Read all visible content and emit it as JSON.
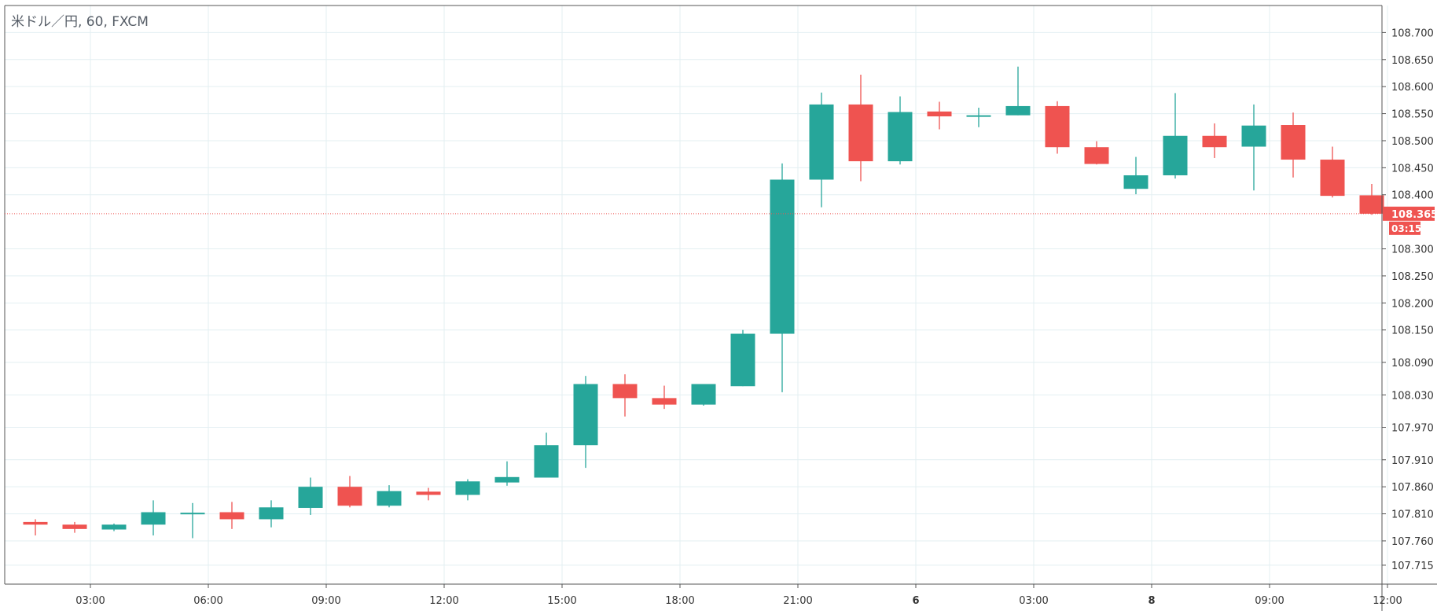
{
  "legend_label": "米ドル／円, 60, FXCM",
  "colors": {
    "up": "#26a69a",
    "down": "#ef5350",
    "grid": "#e3eff2",
    "axis_text": "#333333",
    "price_line": "#ef5350",
    "last_badge_bg": "#ef5350",
    "last_badge_text": "#ffffff"
  },
  "last_price": {
    "value": 108.365,
    "label": "108.365",
    "countdown": "03:15"
  },
  "chart_data": {
    "type": "candlestick",
    "title": "",
    "ylim": [
      107.68,
      108.75
    ],
    "y_ticks": [
      "108.700",
      "108.650",
      "108.600",
      "108.550",
      "108.500",
      "108.450",
      "108.400",
      "108.300",
      "108.250",
      "108.200",
      "108.150",
      "108.090",
      "108.030",
      "107.970",
      "107.910",
      "107.860",
      "107.810",
      "107.760",
      "107.715"
    ],
    "x_ticks": [
      "03:00",
      "06:00",
      "09:00",
      "12:00",
      "15:00",
      "18:00",
      "21:00",
      "6",
      "03:00",
      "8",
      "09:00",
      "12:00"
    ],
    "x_tick_bars": [
      1.4,
      4.4,
      7.4,
      10.4,
      13.4,
      16.4,
      19.4,
      22.4,
      25.4,
      28.4,
      31.4,
      34.4
    ],
    "grid": true,
    "candles": [
      {
        "o": 107.795,
        "h": 107.8,
        "l": 107.77,
        "c": 107.79
      },
      {
        "o": 107.79,
        "h": 107.795,
        "l": 107.775,
        "c": 107.782
      },
      {
        "o": 107.781,
        "h": 107.792,
        "l": 107.778,
        "c": 107.79
      },
      {
        "o": 107.79,
        "h": 107.835,
        "l": 107.77,
        "c": 107.813
      },
      {
        "o": 107.812,
        "h": 107.83,
        "l": 107.765,
        "c": 107.812
      },
      {
        "o": 107.813,
        "h": 107.832,
        "l": 107.782,
        "c": 107.8
      },
      {
        "o": 107.8,
        "h": 107.835,
        "l": 107.785,
        "c": 107.822
      },
      {
        "o": 107.821,
        "h": 107.877,
        "l": 107.808,
        "c": 107.86
      },
      {
        "o": 107.86,
        "h": 107.88,
        "l": 107.822,
        "c": 107.825
      },
      {
        "o": 107.825,
        "h": 107.863,
        "l": 107.822,
        "c": 107.852
      },
      {
        "o": 107.851,
        "h": 107.858,
        "l": 107.835,
        "c": 107.845
      },
      {
        "o": 107.845,
        "h": 107.874,
        "l": 107.835,
        "c": 107.87
      },
      {
        "o": 107.868,
        "h": 107.907,
        "l": 107.862,
        "c": 107.878
      },
      {
        "o": 107.877,
        "h": 107.96,
        "l": 107.877,
        "c": 107.937
      },
      {
        "o": 107.937,
        "h": 108.065,
        "l": 107.895,
        "c": 108.05
      },
      {
        "o": 108.05,
        "h": 108.068,
        "l": 107.99,
        "c": 108.024
      },
      {
        "o": 108.024,
        "h": 108.047,
        "l": 108.004,
        "c": 108.012
      },
      {
        "o": 108.012,
        "h": 108.05,
        "l": 108.01,
        "c": 108.05
      },
      {
        "o": 108.046,
        "h": 108.15,
        "l": 108.046,
        "c": 108.143
      },
      {
        "o": 108.143,
        "h": 108.458,
        "l": 108.035,
        "c": 108.428
      },
      {
        "o": 108.428,
        "h": 108.589,
        "l": 108.377,
        "c": 108.567
      },
      {
        "o": 108.567,
        "h": 108.622,
        "l": 108.425,
        "c": 108.462
      },
      {
        "o": 108.462,
        "h": 108.582,
        "l": 108.456,
        "c": 108.553
      },
      {
        "o": 108.554,
        "h": 108.572,
        "l": 108.521,
        "c": 108.545
      },
      {
        "o": 108.545,
        "h": 108.561,
        "l": 108.525,
        "c": 108.547
      },
      {
        "o": 108.547,
        "h": 108.637,
        "l": 108.547,
        "c": 108.564
      },
      {
        "o": 108.564,
        "h": 108.573,
        "l": 108.476,
        "c": 108.488
      },
      {
        "o": 108.488,
        "h": 108.499,
        "l": 108.456,
        "c": 108.457
      },
      {
        "o": 108.411,
        "h": 108.47,
        "l": 108.401,
        "c": 108.436
      },
      {
        "o": 108.436,
        "h": 108.588,
        "l": 108.43,
        "c": 108.509
      },
      {
        "o": 108.509,
        "h": 108.532,
        "l": 108.468,
        "c": 108.488
      },
      {
        "o": 108.489,
        "h": 108.567,
        "l": 108.408,
        "c": 108.528
      },
      {
        "o": 108.529,
        "h": 108.552,
        "l": 108.432,
        "c": 108.465
      },
      {
        "o": 108.465,
        "h": 108.489,
        "l": 108.395,
        "c": 108.398
      },
      {
        "o": 108.399,
        "h": 108.42,
        "l": 108.363,
        "c": 108.365
      }
    ]
  }
}
